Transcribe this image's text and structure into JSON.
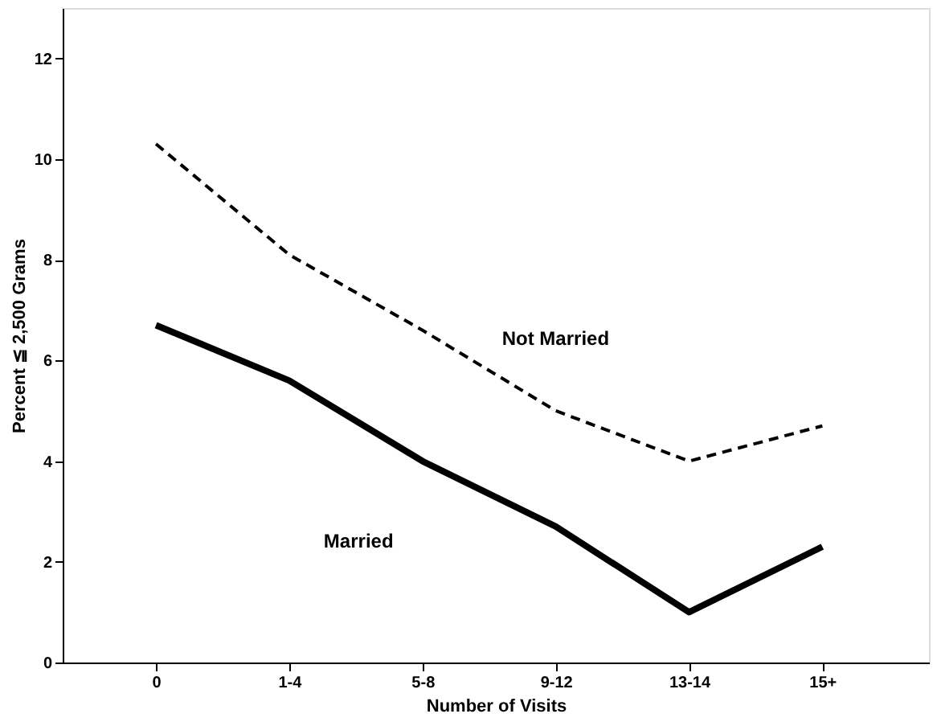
{
  "chart_data": {
    "type": "line",
    "xlabel": "Number of Visits",
    "ylabel": "Percent ≦ 2,500 Grams",
    "categories": [
      "0",
      "1-4",
      "5-8",
      "9-12",
      "13-14",
      "15+"
    ],
    "series": [
      {
        "color": "#000000",
        "line_style": "dashed",
        "values": [
          10.3,
          8.1,
          6.6,
          5.0,
          4.0,
          4.7
        ]
      },
      {
        "color": "#000000",
        "line_style": "solid",
        "values": [
          6.7,
          5.6,
          4.0,
          2.7,
          1.0,
          2.3
        ]
      }
    ],
    "ylim": [
      0,
      13
    ],
    "yticks": [
      0,
      2,
      4,
      6,
      8,
      10,
      12
    ],
    "grid": false,
    "legend": false,
    "marker": "none",
    "annotations": [
      "Not Married",
      "Married"
    ]
  }
}
